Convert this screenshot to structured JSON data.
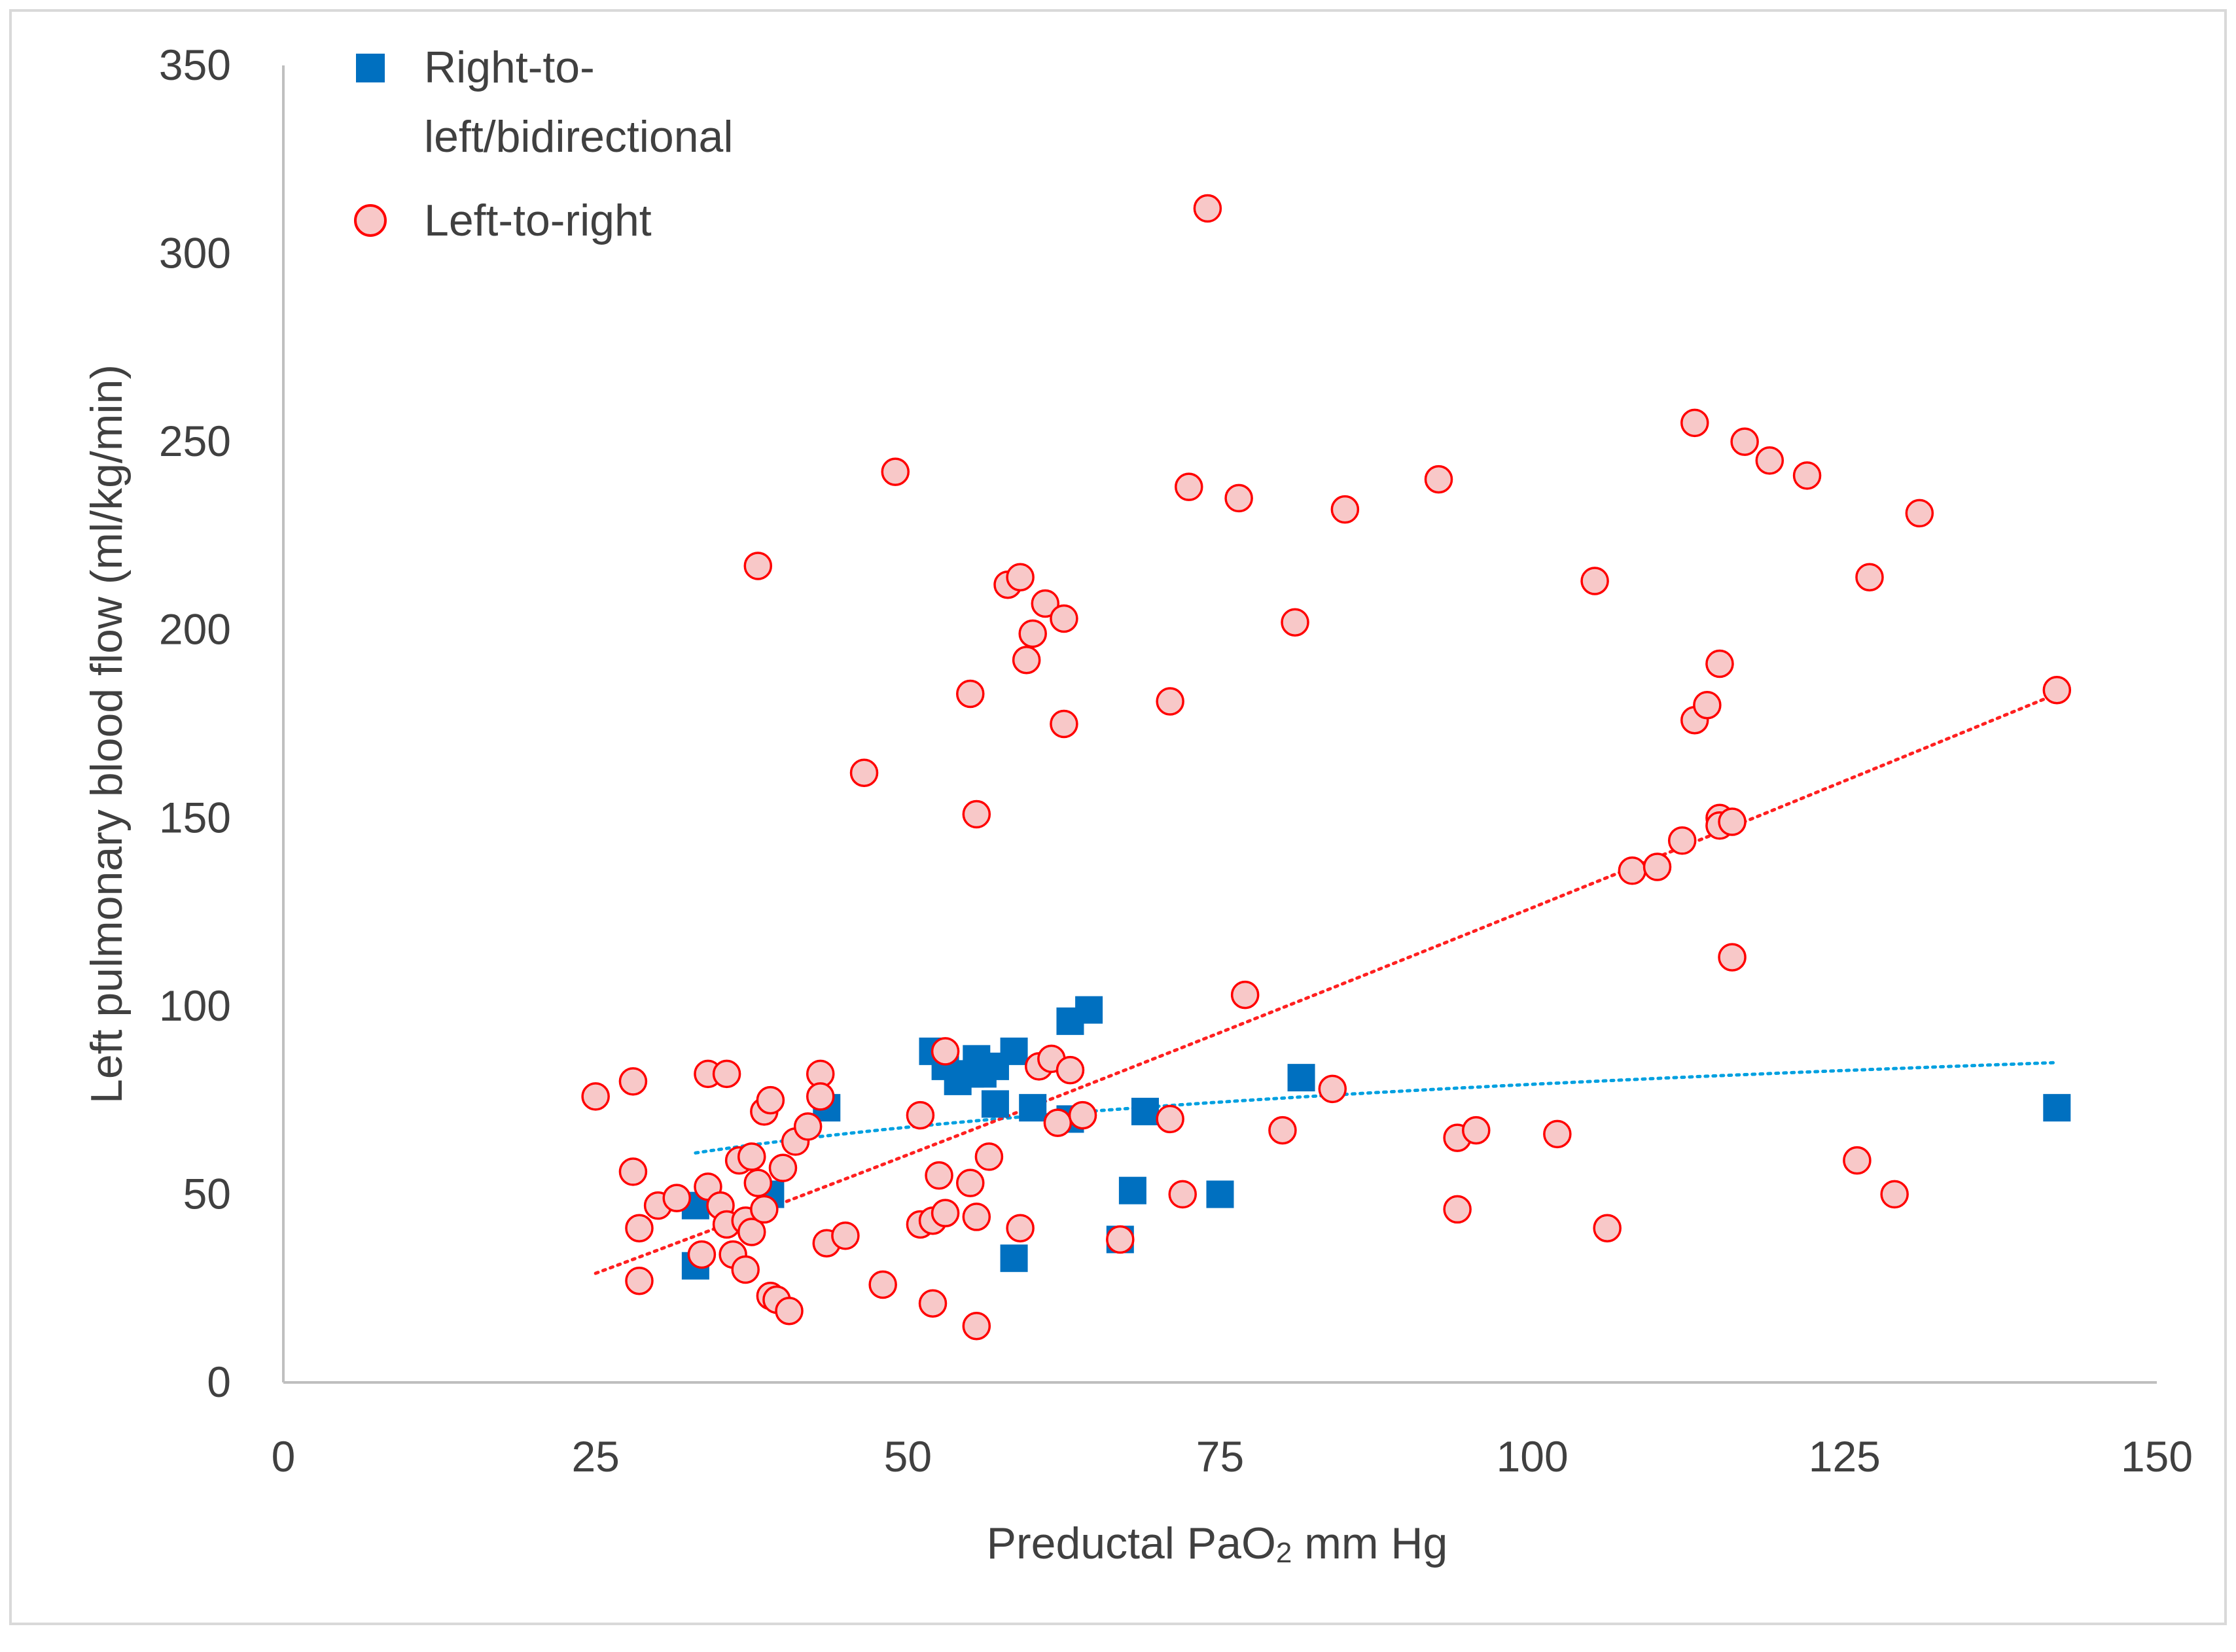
{
  "chart_data": {
    "type": "scatter",
    "title": "",
    "xlabel_main": "Preductal PaO",
    "xlabel_sub": "2",
    "xlabel_tail": " mm Hg",
    "ylabel": "Left pulmonary blood flow (ml/kg/min)",
    "xlim": [
      0,
      150
    ],
    "ylim": [
      0,
      350
    ],
    "xticks": [
      "0",
      "25",
      "50",
      "75",
      "100",
      "125",
      "150"
    ],
    "yticks": [
      "0",
      "50",
      "100",
      "150",
      "200",
      "250",
      "300",
      "350"
    ],
    "grid": false,
    "legend_position": "top-left",
    "series": [
      {
        "name": "Right-to-left/bidirectional",
        "legend_line1": "Right-to-",
        "legend_line2": "left/bidirectional",
        "marker": "square",
        "color": "#0070C0",
        "points": [
          [
            33,
            47
          ],
          [
            33,
            31
          ],
          [
            39,
            50
          ],
          [
            43.5,
            73
          ],
          [
            52,
            88
          ],
          [
            53,
            84
          ],
          [
            54,
            80
          ],
          [
            55,
            82
          ],
          [
            55.5,
            86
          ],
          [
            56,
            82
          ],
          [
            57,
            84
          ],
          [
            57,
            74
          ],
          [
            58.5,
            88
          ],
          [
            58.5,
            33
          ],
          [
            60,
            73
          ],
          [
            63,
            96
          ],
          [
            63,
            70
          ],
          [
            64.5,
            99
          ],
          [
            67,
            38
          ],
          [
            68,
            51
          ],
          [
            69,
            72
          ],
          [
            75,
            50
          ],
          [
            81.5,
            81
          ],
          [
            142,
            73
          ]
        ],
        "trend": {
          "type": "log",
          "x_range": [
            33,
            142
          ],
          "y_range": [
            61,
            85
          ],
          "color": "#00A0E0"
        }
      },
      {
        "name": "Left-to-right",
        "legend_line1": "Left-to-right",
        "marker": "circle",
        "color": "#FF0000",
        "fill": "#F8C8C8",
        "points": [
          [
            25,
            76
          ],
          [
            28,
            80
          ],
          [
            28,
            56
          ],
          [
            28.5,
            41
          ],
          [
            28.5,
            27
          ],
          [
            30,
            47
          ],
          [
            31.5,
            49
          ],
          [
            33.5,
            34
          ],
          [
            34,
            82
          ],
          [
            34,
            52
          ],
          [
            35,
            47
          ],
          [
            35.5,
            82
          ],
          [
            35.5,
            42
          ],
          [
            36,
            34
          ],
          [
            36.5,
            59
          ],
          [
            37,
            30
          ],
          [
            37,
            43
          ],
          [
            37.5,
            40
          ],
          [
            37.5,
            60
          ],
          [
            38,
            53
          ],
          [
            38,
            217
          ],
          [
            38.5,
            72
          ],
          [
            38.5,
            46
          ],
          [
            39,
            75
          ],
          [
            39,
            23
          ],
          [
            39.5,
            22
          ],
          [
            40,
            57
          ],
          [
            40.5,
            19
          ],
          [
            41,
            64
          ],
          [
            42,
            68
          ],
          [
            43,
            82
          ],
          [
            43,
            76
          ],
          [
            43.5,
            37
          ],
          [
            45,
            39
          ],
          [
            46.5,
            162
          ],
          [
            48,
            26
          ],
          [
            49,
            242
          ],
          [
            51,
            71
          ],
          [
            51,
            42
          ],
          [
            52,
            43
          ],
          [
            52,
            21
          ],
          [
            52.5,
            55
          ],
          [
            53,
            45
          ],
          [
            53,
            88
          ],
          [
            55,
            53
          ],
          [
            55,
            183
          ],
          [
            55.5,
            151
          ],
          [
            55.5,
            44
          ],
          [
            55.5,
            15
          ],
          [
            56.5,
            60
          ],
          [
            58,
            212
          ],
          [
            59,
            214
          ],
          [
            59,
            41
          ],
          [
            59.5,
            192
          ],
          [
            60,
            199
          ],
          [
            60.5,
            84
          ],
          [
            61,
            207
          ],
          [
            61.5,
            86
          ],
          [
            62,
            69
          ],
          [
            62.5,
            203
          ],
          [
            62.5,
            175
          ],
          [
            63,
            83
          ],
          [
            64,
            71
          ],
          [
            67,
            38
          ],
          [
            71,
            70
          ],
          [
            71,
            181
          ],
          [
            72,
            50
          ],
          [
            72.5,
            238
          ],
          [
            74,
            312
          ],
          [
            76.5,
            235
          ],
          [
            77,
            103
          ],
          [
            80,
            67
          ],
          [
            81,
            202
          ],
          [
            84,
            78
          ],
          [
            85,
            232
          ],
          [
            92.5,
            240
          ],
          [
            94,
            65
          ],
          [
            94,
            46
          ],
          [
            95.5,
            67
          ],
          [
            102,
            66
          ],
          [
            105,
            213
          ],
          [
            106,
            41
          ],
          [
            108,
            136
          ],
          [
            110,
            137
          ],
          [
            112,
            144
          ],
          [
            113,
            255
          ],
          [
            113,
            176
          ],
          [
            114,
            180
          ],
          [
            115,
            191
          ],
          [
            115,
            150
          ],
          [
            115,
            148
          ],
          [
            116,
            149
          ],
          [
            116,
            113
          ],
          [
            117,
            250
          ],
          [
            119,
            245
          ],
          [
            122,
            241
          ],
          [
            126,
            59
          ],
          [
            127,
            214
          ],
          [
            129,
            50
          ],
          [
            131,
            231
          ],
          [
            142,
            184
          ]
        ],
        "trend": {
          "type": "power",
          "x_range": [
            25,
            142
          ],
          "y_range": [
            29,
            183
          ],
          "color": "#FF2020"
        }
      }
    ]
  }
}
